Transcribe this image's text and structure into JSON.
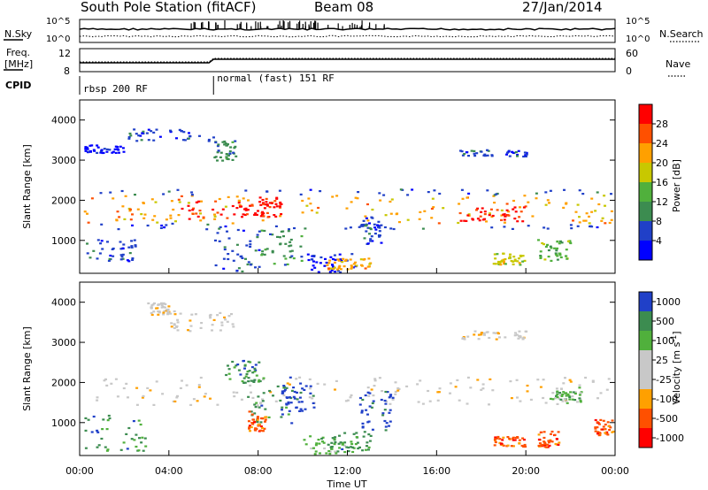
{
  "header": {
    "station": "South Pole Station (fitACF)",
    "beam": "Beam 08",
    "date": "27/Jan/2014"
  },
  "top_panels": {
    "nsky_label": "N.Sky",
    "nsky_ticks": [
      "10^5",
      "10^0"
    ],
    "nsearch_label": "N.Search",
    "nsearch_ticks": [
      "10^5",
      "10^0"
    ],
    "freq_label_1": "Freq.",
    "freq_label_2": "[MHz]",
    "freq_ticks": [
      "12",
      "8"
    ],
    "nave_label": "Nave",
    "nave_ticks": [
      "60",
      "0"
    ],
    "cpid_label": "CPID",
    "cpid_segments": [
      {
        "start_h": 0,
        "end_h": 6,
        "label": "rbsp 200 RF"
      },
      {
        "start_h": 6,
        "end_h": 24,
        "label": "normal (fast) 151 RF"
      }
    ]
  },
  "colors": {
    "power": [
      "#0000ff",
      "#2040c8",
      "#3c8c50",
      "#50b03c",
      "#c8c800",
      "#ffa000",
      "#ff5000",
      "#ff0000"
    ],
    "velocity": [
      "#ff0000",
      "#ff5000",
      "#ffa000",
      "#c8c8c8",
      "#c8c8c8",
      "#50b03c",
      "#3c8c50",
      "#2040c8"
    ]
  },
  "chart_data": [
    {
      "type": "heatmap",
      "name": "power-panel",
      "ylabel": "Slant Range [km]",
      "xlabel": "Time UT",
      "xlim_h": [
        0,
        24
      ],
      "ylim_km": [
        180,
        4500
      ],
      "yticks": [
        1000,
        2000,
        3000,
        4000
      ],
      "colorbar": {
        "label": "Power [dB]",
        "ticks": [
          "4",
          "8",
          "12",
          "16",
          "20",
          "24",
          "28"
        ]
      },
      "bands": [
        {
          "t0": 0,
          "t1": 24,
          "r0": 1450,
          "r1": 2150,
          "level": 5
        },
        {
          "t0": 4.5,
          "t1": 8,
          "r0": 1550,
          "r1": 2000,
          "level": 7
        },
        {
          "t0": 8,
          "t1": 9,
          "r0": 1600,
          "r1": 2100,
          "level": 7
        },
        {
          "t0": 17,
          "t1": 20,
          "r0": 1500,
          "r1": 1850,
          "level": 7
        },
        {
          "t0": 0.2,
          "t1": 23.8,
          "r0": 1300,
          "r1": 1450,
          "level": 1
        },
        {
          "t0": 0.2,
          "t1": 23.8,
          "r0": 2150,
          "r1": 2300,
          "level": 1
        },
        {
          "t0": 2,
          "t1": 6,
          "r0": 3500,
          "r1": 3800,
          "level": 1
        },
        {
          "t0": 0.2,
          "t1": 2,
          "r0": 3200,
          "r1": 3400,
          "level": 0
        },
        {
          "t0": 6,
          "t1": 7,
          "r0": 3000,
          "r1": 3500,
          "level": 2
        },
        {
          "t0": 6,
          "t1": 8,
          "r0": 200,
          "r1": 1300,
          "level": 1
        },
        {
          "t0": 8,
          "t1": 10,
          "r0": 400,
          "r1": 1300,
          "level": 2
        },
        {
          "t0": 10,
          "t1": 12.5,
          "r0": 200,
          "r1": 700,
          "level": 0
        },
        {
          "t0": 11,
          "t1": 13,
          "r0": 300,
          "r1": 600,
          "level": 5
        },
        {
          "t0": 12.5,
          "t1": 13.5,
          "r0": 900,
          "r1": 1600,
          "level": 1
        },
        {
          "t0": 0.2,
          "t1": 2.5,
          "r0": 500,
          "r1": 1100,
          "level": 1
        },
        {
          "t0": 18.5,
          "t1": 20,
          "r0": 400,
          "r1": 700,
          "level": 4
        },
        {
          "t0": 20.5,
          "t1": 22,
          "r0": 500,
          "r1": 1100,
          "level": 3
        },
        {
          "t0": 17,
          "t1": 20,
          "r0": 3100,
          "r1": 3300,
          "level": 1
        }
      ]
    },
    {
      "type": "heatmap",
      "name": "velocity-panel",
      "ylabel": "Slant Range [km]",
      "xlabel": "Time UT",
      "xlim_h": [
        0,
        24
      ],
      "ylim_km": [
        180,
        4500
      ],
      "yticks": [
        1000,
        2000,
        3000,
        4000
      ],
      "xticks": [
        "00:00",
        "04:00",
        "08:00",
        "12:00",
        "16:00",
        "20:00",
        "00:00"
      ],
      "colorbar": {
        "label": "Velocity [m s",
        "label_exp": "-1",
        "label_end": "]",
        "ticks": [
          "1000",
          "500",
          "100",
          "25",
          "-25",
          "-100",
          "-500",
          "-1000"
        ]
      },
      "bands": [
        {
          "t0": 0,
          "t1": 24,
          "r0": 1450,
          "r1": 2150,
          "level": 3
        },
        {
          "t0": 4,
          "t1": 7,
          "r0": 3300,
          "r1": 3800,
          "level": 3
        },
        {
          "t0": 6.5,
          "t1": 8,
          "r0": 2000,
          "r1": 2600,
          "level": 6
        },
        {
          "t0": 7.5,
          "t1": 9.5,
          "r0": 900,
          "r1": 2200,
          "level": 6
        },
        {
          "t0": 9,
          "t1": 10.5,
          "r0": 1300,
          "r1": 2000,
          "level": 7
        },
        {
          "t0": 10,
          "t1": 12.5,
          "r0": 200,
          "r1": 700,
          "level": 5
        },
        {
          "t0": 11,
          "t1": 13,
          "r0": 300,
          "r1": 800,
          "level": 6
        },
        {
          "t0": 12.5,
          "t1": 14,
          "r0": 800,
          "r1": 1800,
          "level": 7
        },
        {
          "t0": 7.5,
          "t1": 8.3,
          "r0": 800,
          "r1": 1300,
          "level": 1
        },
        {
          "t0": 0.2,
          "t1": 3,
          "r0": 300,
          "r1": 1200,
          "level": 6
        },
        {
          "t0": 18.5,
          "t1": 20,
          "r0": 400,
          "r1": 700,
          "level": 1
        },
        {
          "t0": 20.5,
          "t1": 21.5,
          "r0": 400,
          "r1": 800,
          "level": 1
        },
        {
          "t0": 21,
          "t1": 22.5,
          "r0": 1500,
          "r1": 1900,
          "level": 5
        },
        {
          "t0": 3,
          "t1": 4,
          "r0": 3700,
          "r1": 4000,
          "level": 3
        },
        {
          "t0": 17,
          "t1": 20,
          "r0": 3100,
          "r1": 3300,
          "level": 3
        },
        {
          "t0": 23,
          "t1": 24,
          "r0": 700,
          "r1": 1100,
          "level": 1
        }
      ]
    }
  ]
}
